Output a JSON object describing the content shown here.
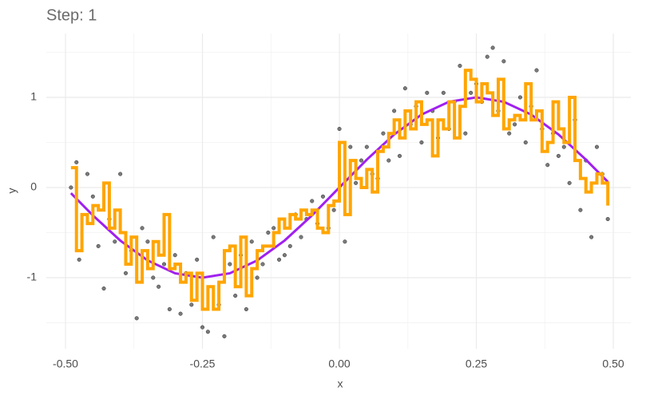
{
  "chart_data": {
    "type": "scatter",
    "title": "Step: 1",
    "x_label": "x",
    "y_label": "y",
    "xlim": [
      -0.535,
      0.532
    ],
    "ylim": [
      -1.788,
      1.708
    ],
    "xticks": [
      {
        "value": -0.5,
        "label": "-0.50"
      },
      -0.25,
      {
        "value": 0,
        "label": "0.00"
      },
      0.25,
      {
        "value": 0.5,
        "label": "0.50"
      }
    ],
    "yticks": [
      -1,
      0,
      1
    ],
    "x_minor": [
      -0.375,
      -0.125,
      0.125,
      0.375
    ],
    "y_minor": [
      -1.5,
      -0.5,
      0.5,
      1.5
    ],
    "grid": true,
    "points": {
      "color": "#595959",
      "x": [
        -0.49,
        -0.48,
        -0.475,
        -0.46,
        -0.45,
        -0.44,
        -0.43,
        -0.42,
        -0.41,
        -0.4,
        -0.39,
        -0.38,
        -0.37,
        -0.36,
        -0.35,
        -0.34,
        -0.33,
        -0.32,
        -0.31,
        -0.3,
        -0.29,
        -0.28,
        -0.27,
        -0.26,
        -0.25,
        -0.24,
        -0.23,
        -0.22,
        -0.21,
        -0.2,
        -0.19,
        -0.18,
        -0.17,
        -0.16,
        -0.15,
        -0.14,
        -0.13,
        -0.12,
        -0.11,
        -0.1,
        -0.09,
        -0.08,
        -0.07,
        -0.06,
        -0.05,
        -0.04,
        -0.03,
        -0.02,
        -0.01,
        0,
        0.01,
        0.02,
        0.03,
        0.04,
        0.05,
        0.06,
        0.07,
        0.08,
        0.09,
        0.1,
        0.11,
        0.12,
        0.13,
        0.14,
        0.15,
        0.16,
        0.17,
        0.18,
        0.19,
        0.2,
        0.21,
        0.22,
        0.23,
        0.24,
        0.25,
        0.26,
        0.27,
        0.28,
        0.29,
        0.3,
        0.31,
        0.32,
        0.33,
        0.34,
        0.35,
        0.36,
        0.37,
        0.38,
        0.39,
        0.4,
        0.41,
        0.42,
        0.43,
        0.44,
        0.45,
        0.46,
        0.47,
        0.48,
        0.49
      ],
      "y": [
        0,
        0.28,
        -0.8,
        0.15,
        -0.1,
        -0.65,
        -1.12,
        -0.35,
        -0.6,
        0.15,
        -0.95,
        -0.7,
        -1.45,
        -0.45,
        -0.6,
        -1,
        -1.1,
        -0.85,
        -1.35,
        -0.75,
        -1.4,
        -0.95,
        -1.3,
        -0.8,
        -1.55,
        -1.6,
        -0.55,
        -1.3,
        -1.65,
        -0.85,
        -1.2,
        -0.75,
        -1.35,
        -0.6,
        -1,
        -0.85,
        -0.5,
        -0.45,
        -0.8,
        -0.75,
        -0.65,
        -0.3,
        -0.55,
        -0.35,
        -0.15,
        -0.4,
        -0.1,
        -0.45,
        -0.25,
        0.65,
        -0.6,
        0.45,
        0.05,
        0.3,
        0.45,
        0.15,
        0.1,
        0.6,
        0.3,
        0.85,
        0.35,
        1.1,
        0.7,
        0.9,
        0.5,
        1.05,
        0.85,
        0.55,
        1.05,
        0.65,
        0.95,
        1.35,
        0.6,
        1.05,
        1.15,
        0.95,
        1.45,
        1.55,
        0.85,
        1.4,
        0.6,
        0.7,
        1,
        0.5,
        0.9,
        1.3,
        0.65,
        0.25,
        0.6,
        0.35,
        0.45,
        0.05,
        0.75,
        -0.25,
        0.3,
        -0.55,
        0.45,
        0.15,
        -0.35
      ]
    },
    "curve": {
      "color": "#a020f0",
      "x": [
        -0.49,
        -0.45,
        -0.4,
        -0.35,
        -0.3,
        -0.25,
        -0.2,
        -0.15,
        -0.1,
        -0.05,
        0,
        0.05,
        0.1,
        0.15,
        0.2,
        0.25,
        0.3,
        0.35,
        0.4,
        0.45,
        0.49
      ],
      "y": [
        -0.063,
        -0.309,
        -0.588,
        -0.809,
        -0.951,
        -1,
        -0.951,
        -0.809,
        -0.588,
        -0.309,
        0,
        0.309,
        0.588,
        0.809,
        0.951,
        1,
        0.951,
        0.809,
        0.588,
        0.309,
        0.063
      ]
    },
    "step": {
      "color": "#ffa500",
      "x": [
        -0.49,
        -0.48,
        -0.47,
        -0.46,
        -0.45,
        -0.44,
        -0.43,
        -0.42,
        -0.41,
        -0.4,
        -0.39,
        -0.38,
        -0.37,
        -0.36,
        -0.35,
        -0.34,
        -0.33,
        -0.32,
        -0.31,
        -0.3,
        -0.29,
        -0.28,
        -0.27,
        -0.26,
        -0.25,
        -0.24,
        -0.23,
        -0.22,
        -0.21,
        -0.2,
        -0.19,
        -0.18,
        -0.17,
        -0.16,
        -0.15,
        -0.14,
        -0.13,
        -0.12,
        -0.11,
        -0.1,
        -0.09,
        -0.08,
        -0.07,
        -0.06,
        -0.05,
        -0.04,
        -0.03,
        -0.02,
        -0.01,
        0,
        0.01,
        0.02,
        0.03,
        0.04,
        0.05,
        0.06,
        0.07,
        0.08,
        0.09,
        0.1,
        0.11,
        0.12,
        0.13,
        0.14,
        0.15,
        0.16,
        0.17,
        0.18,
        0.19,
        0.2,
        0.21,
        0.22,
        0.23,
        0.24,
        0.25,
        0.26,
        0.27,
        0.28,
        0.29,
        0.3,
        0.31,
        0.32,
        0.33,
        0.34,
        0.35,
        0.36,
        0.37,
        0.38,
        0.39,
        0.4,
        0.41,
        0.42,
        0.43,
        0.44,
        0.45,
        0.46,
        0.47,
        0.48,
        0.49
      ],
      "y": [
        0.22,
        -0.7,
        -0.3,
        -0.4,
        -0.2,
        -0.25,
        0.05,
        -0.45,
        -0.25,
        -0.5,
        -0.85,
        -0.55,
        -1.05,
        -0.7,
        -0.9,
        -0.6,
        -0.75,
        -0.3,
        -0.9,
        -0.85,
        -1.05,
        -0.95,
        -1.25,
        -0.95,
        -1.35,
        -1.1,
        -1.35,
        -1.05,
        -0.7,
        -0.65,
        -1.1,
        -0.55,
        -1.2,
        -0.9,
        -0.7,
        -0.65,
        -0.65,
        -0.5,
        -0.35,
        -0.45,
        -0.3,
        -0.35,
        -0.25,
        -0.3,
        -0.25,
        -0.45,
        -0.5,
        -0.2,
        -0.15,
        0.5,
        -0.3,
        0.3,
        0.1,
        0,
        0.2,
        -0.05,
        0.4,
        0.45,
        0.6,
        0.75,
        0.55,
        0.85,
        0.65,
        0.95,
        0.7,
        0.75,
        0.35,
        0.75,
        0.65,
        0.95,
        0.55,
        0.9,
        1.3,
        1.2,
        0.95,
        1.15,
        1.05,
        0.8,
        1.2,
        0.65,
        0.75,
        0.8,
        0.75,
        1.15,
        0.75,
        0.85,
        0.4,
        0.5,
        0.95,
        0.65,
        0.5,
        1,
        0.3,
        0.1,
        -0.05,
        0.05,
        0.15,
        0.05,
        -0.2
      ]
    }
  }
}
